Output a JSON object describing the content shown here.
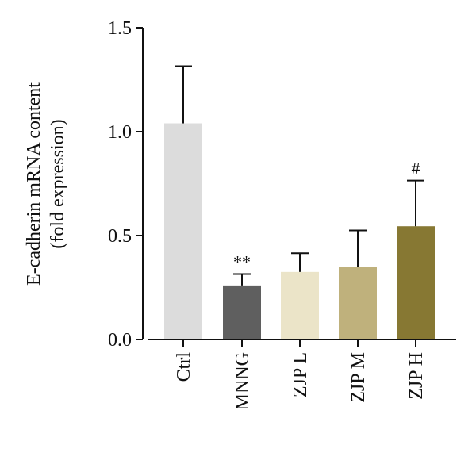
{
  "chart_data": {
    "type": "bar",
    "title": "",
    "ylabel_lines": [
      "E-cadherin mRNA content",
      "(fold expression)"
    ],
    "xlabel": "",
    "ylim": [
      0,
      1.5
    ],
    "yticks": [
      {
        "value": 0.0,
        "label": "0.0"
      },
      {
        "value": 0.5,
        "label": "0.5"
      },
      {
        "value": 1.0,
        "label": "1.0"
      },
      {
        "value": 1.5,
        "label": "1.5"
      }
    ],
    "grid": false,
    "categories": [
      "Ctrl",
      "MNNG",
      "ZJP L",
      "ZJP M",
      "ZJP H"
    ],
    "values": [
      1.04,
      0.26,
      0.325,
      0.35,
      0.545
    ],
    "errors": [
      0.275,
      0.055,
      0.09,
      0.175,
      0.22
    ],
    "annotations": [
      "",
      "**",
      "",
      "",
      "#"
    ],
    "colors": [
      "#dcdcdc",
      "#5f5f5f",
      "#ebe4c8",
      "#bfb17c",
      "#877833"
    ]
  }
}
